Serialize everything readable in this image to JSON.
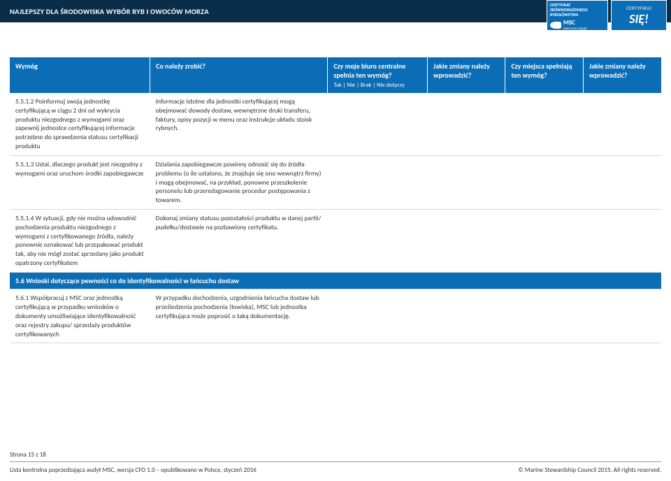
{
  "banner": {
    "title": "NAJLEPSZY DLA ŚRODOWISKA WYBÓR RYB I OWOCÓW MORZA"
  },
  "cert_badge": {
    "line1": "CERTYFIKAT",
    "line2": "ZRÓWNOWAŻONEGO",
    "line3": "RYBOŁÓWSTWA",
    "msc": "MSC",
    "url": "www.msc.org/pl"
  },
  "sie_badge": {
    "top": "CERTYFIKUJ",
    "big": "SIĘ!"
  },
  "headers": {
    "col1": "Wymóg",
    "col2": "Co należy zrobić?",
    "col3_top": "Czy moje biuro centralne spełnia ten wymóg?",
    "col3_sub": "Tak | Nie | Brak | Nie dotyczy",
    "col4": "Jakie zmiany należy wprowadzić?",
    "col5": "Czy miejsca spełniają ten wymóg?",
    "col6": "Jakie zmiany należy wprowadzić?"
  },
  "rows": [
    {
      "req": "5.5.1.2 Poinformuj swoją jednostkę certyfikującą w ciągu 2 dni od wykrycia produktu niezgodnego z wymogami oraz zapewnij jednostce certyfikującej informacje potrzebne do sprawdzenia statusu certyfikacji produktu",
      "action": "Informacje istotne dla jednostki certyfikującej mogą obejmować dowody dostaw, wewnętrzne druki transferu, faktury, opisy pozycji w menu oraz instrukcje układu stoisk rybnych."
    },
    {
      "req": "5.5.1.3 Ustal, dlaczego produkt jest niezgodny z wymogami oraz uruchom środki zapobiegawcze",
      "action": "Działania zapobiegawcze powinny odnosić się do źródła problemu (o ile ustalono, że znajduje się ono wewnątrz firmy) i mogą obejmować, na przykład, ponowne przeszkolenie personelu lub przeredagowanie procedur postępowania z towarem."
    },
    {
      "req": "5.5.1.4 W sytuacji, gdy nie można udowodnić pochodzenia produktu niezgodnego z wymogami z certyfikowanego źródła, należy ponownie oznakować lub przepakować produkt tak, aby nie mógł zostać sprzedany jako produkt opatrzony certyfikatem",
      "action": "Dokonaj zmiany statusu pozostałości produktu w danej partii/ pudełku/dostawie na pozbawiony certyfikatu."
    }
  ],
  "section": {
    "title": "5.6 Wnioski dotyczące pewności co do  identyfikowalności w łańcuchu dostaw"
  },
  "row_561": {
    "req": "5.6.1 Współpracuj z MSC oraz jednostką certyfikującą w przypadku wniosków o dokumenty umożliwiające identyfikowalność oraz rejestry zakupu/ sprzedaży produktów certyfikowanych",
    "action": "W przypadku dochodzenia, uzgodnienia łańcucha dostaw lub prześledzenia pochodzenia (łowiska), MSC lub jednostka certyfikująca może poprosić o taką dokumentację."
  },
  "footer": {
    "page": "Strona 15 z 18",
    "left": "Lista kontrolna poprzedzająca audyt MSC, wersja CFO 1.0 – opublikowano w Polsce, styczeń 2016",
    "right": "© Marine Stewardship Council 2015. All rights reserved."
  }
}
